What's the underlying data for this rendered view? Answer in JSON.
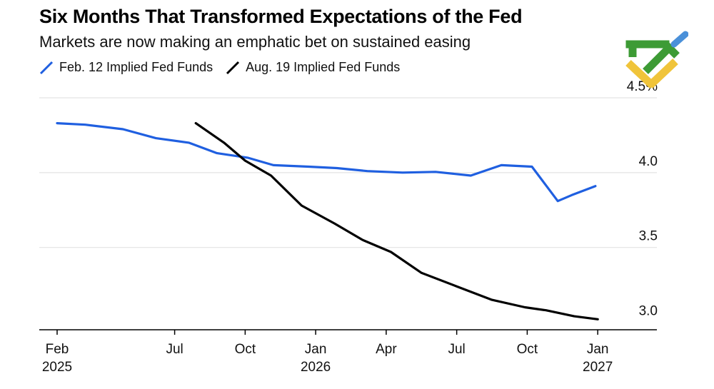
{
  "title": "Six Months That Transformed Expectations of the Fed",
  "subtitle": "Markets are now making an emphatic bet on sustained easing",
  "colors": {
    "feb_series": "#1f5fe0",
    "aug_series": "#000000",
    "grid": "#e3e3e3",
    "logo_green": "#3d9b35",
    "logo_yellow": "#f0c43a",
    "logo_blue": "#4a90d9"
  },
  "chart_data": {
    "type": "line",
    "title": "Six Months That Transformed Expectations of the Fed",
    "subtitle": "Markets are now making an emphatic bet on sustained easing",
    "xlabel": "",
    "ylabel": "",
    "unit": "%",
    "ylim": [
      2.95,
      4.5
    ],
    "yticks": [
      3.0,
      3.5,
      4.0,
      4.5
    ],
    "ytick_labels": [
      "3.0",
      "3.5",
      "4.0",
      "4.5%"
    ],
    "x_is_months_since": "Jan 2025",
    "xticks": [
      {
        "m": 1,
        "label": "Feb",
        "year": "2025"
      },
      {
        "m": 6,
        "label": "Jul",
        "year": ""
      },
      {
        "m": 9,
        "label": "Oct",
        "year": ""
      },
      {
        "m": 12,
        "label": "Jan",
        "year": "2026"
      },
      {
        "m": 15,
        "label": "Apr",
        "year": ""
      },
      {
        "m": 18,
        "label": "Jul",
        "year": ""
      },
      {
        "m": 21,
        "label": "Oct",
        "year": ""
      },
      {
        "m": 24,
        "label": "Jan",
        "year": "2027"
      }
    ],
    "series": [
      {
        "name": "Feb. 12 Implied Fed Funds",
        "color": "#1f5fe0",
        "x": [
          1,
          2.2,
          3.8,
          5.2,
          6.6,
          7.8,
          9.1,
          10.2,
          11.7,
          12.9,
          14.2,
          15.7,
          17.1,
          18.6,
          19.9,
          21.2,
          22.3,
          22.9,
          23.9
        ],
        "values": [
          4.33,
          4.32,
          4.29,
          4.23,
          4.2,
          4.13,
          4.1,
          4.05,
          4.04,
          4.03,
          4.01,
          4.0,
          4.005,
          3.98,
          4.05,
          4.04,
          3.81,
          3.85,
          3.91
        ]
      },
      {
        "name": "Aug. 19 Implied Fed Funds",
        "color": "#000000",
        "x": [
          6.9,
          8.1,
          9.0,
          10.1,
          11.4,
          12.8,
          14.0,
          15.2,
          16.5,
          18.0,
          19.5,
          20.9,
          21.8,
          23.0,
          24.0
        ],
        "values": [
          4.33,
          4.2,
          4.08,
          3.98,
          3.78,
          3.66,
          3.55,
          3.47,
          3.33,
          3.24,
          3.15,
          3.1,
          3.08,
          3.04,
          3.02
        ]
      }
    ]
  }
}
